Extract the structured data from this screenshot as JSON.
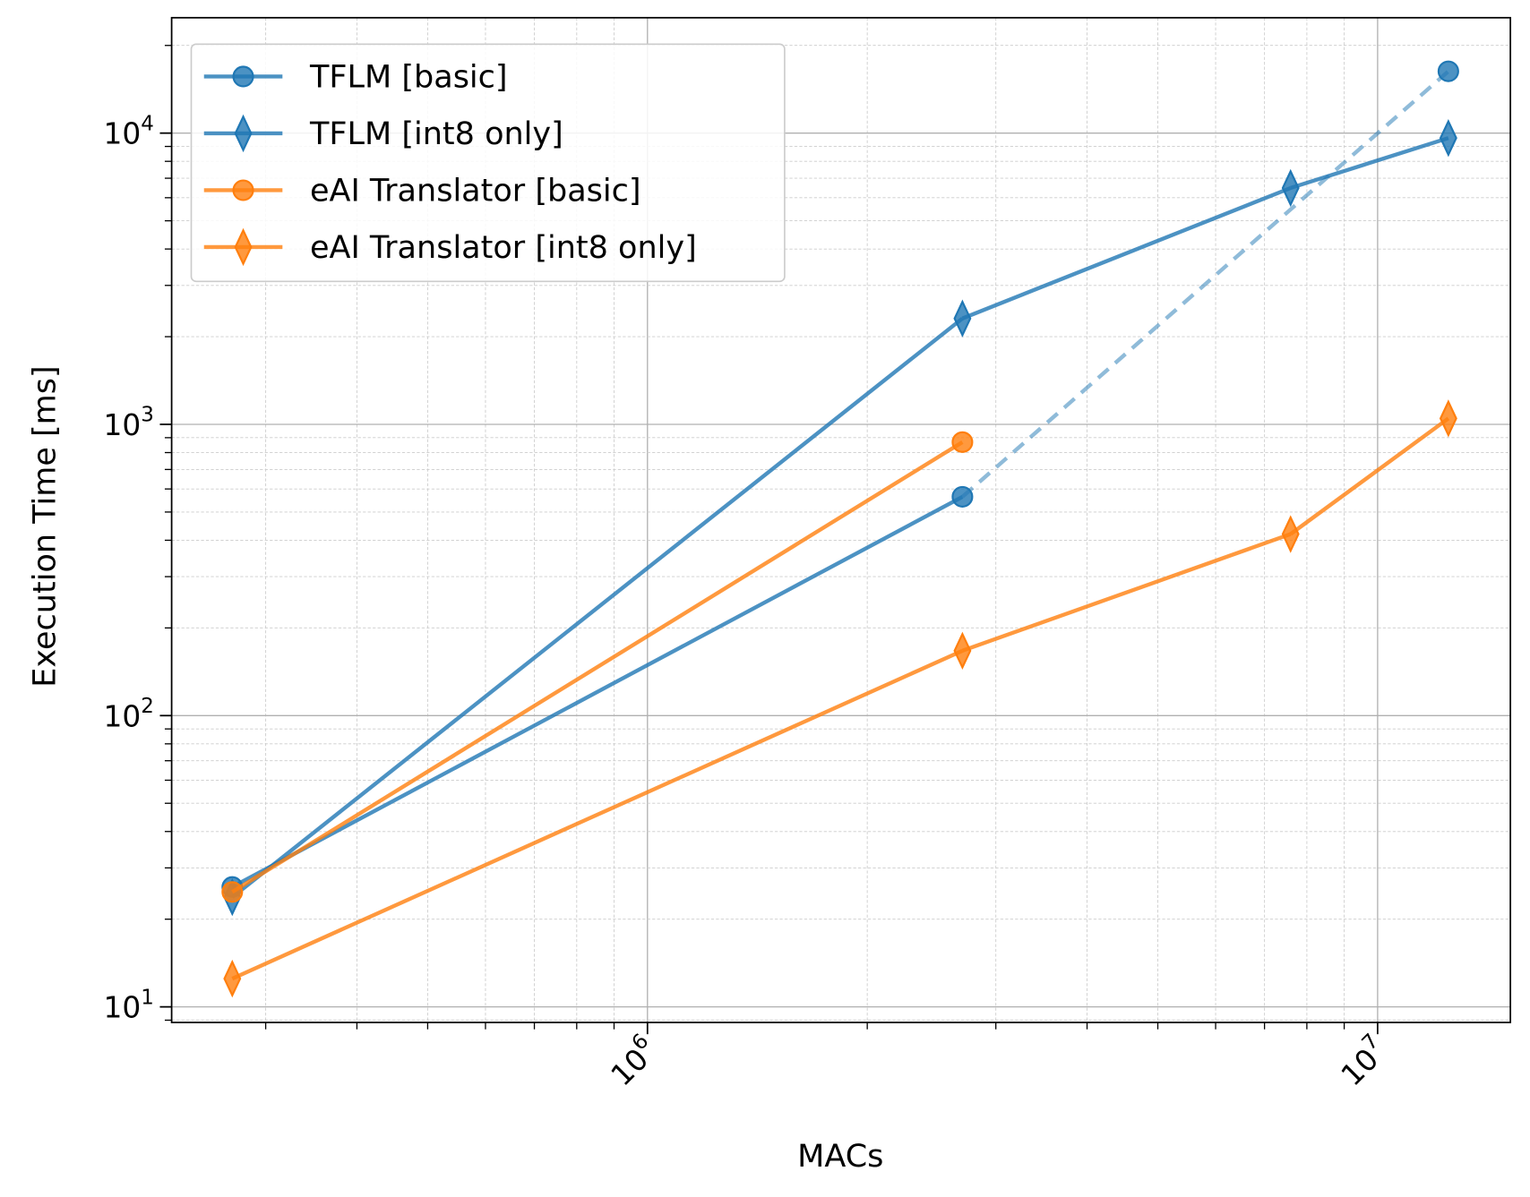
{
  "chart_data": {
    "type": "line",
    "xlabel": "MACs",
    "ylabel": "Execution Time [ms]",
    "xscale": "log",
    "yscale": "log",
    "xlim": [
      223000,
      15200000
    ],
    "ylim": [
      8.84,
      24900
    ],
    "grid": "major and minor",
    "legend_position": "top-left",
    "x_ticks": [
      {
        "value": 1000000,
        "base": "10",
        "exp": "6"
      },
      {
        "value": 10000000,
        "base": "10",
        "exp": "7"
      }
    ],
    "y_ticks": [
      {
        "value": 10,
        "base": "10",
        "exp": "1"
      },
      {
        "value": 100,
        "base": "10",
        "exp": "2"
      },
      {
        "value": 1000,
        "base": "10",
        "exp": "3"
      },
      {
        "value": 10000,
        "base": "10",
        "exp": "4"
      }
    ],
    "series": [
      {
        "name": "TFLM [basic]",
        "color": "#1f77b4",
        "marker": "circle",
        "x": [
          270000,
          2700000,
          12500000
        ],
        "y": [
          25.8,
          564,
          16300
        ],
        "dashed_segments": [
          1
        ]
      },
      {
        "name": "TFLM [int8 only]",
        "color": "#1f77b4",
        "marker": "diamond",
        "x": [
          270000,
          2700000,
          7600000,
          12500000
        ],
        "y": [
          23.8,
          2310,
          6480,
          9620
        ],
        "dashed_segments": []
      },
      {
        "name": "eAI Translator [basic]",
        "color": "#ff7f0e",
        "marker": "circle",
        "x": [
          270000,
          2700000
        ],
        "y": [
          24.8,
          869
        ],
        "dashed_segments": []
      },
      {
        "name": "eAI Translator [int8 only]",
        "color": "#ff7f0e",
        "marker": "diamond",
        "x": [
          270000,
          2700000,
          7600000,
          12500000
        ],
        "y": [
          12.5,
          167,
          420,
          1048
        ],
        "dashed_segments": []
      }
    ]
  }
}
